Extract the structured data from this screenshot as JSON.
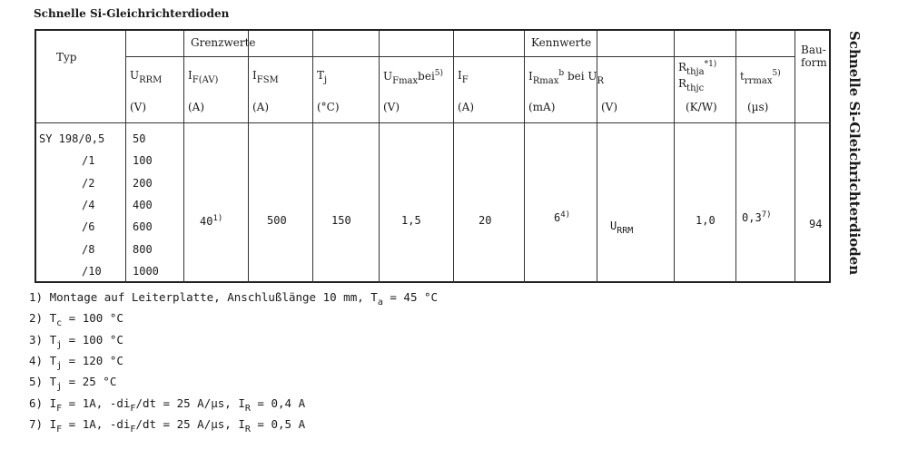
{
  "title": "Schnelle Si-Gleichrichterdioden",
  "side_title": "Schnelle Si-Gleichrichterdioden",
  "table": {
    "typ": "Typ",
    "grenzwerte": "Grenzwerte",
    "kennwerte": "Kennwerte",
    "bauform": [
      "Bau-",
      "form"
    ],
    "cols": [
      {
        "sym": "U",
        "sub": "RRM",
        "unit": "(V)"
      },
      {
        "sym": "I",
        "sub": "F(AV)",
        "unit": "(A)"
      },
      {
        "sym": "I",
        "sub": "FSM",
        "unit": "(A)"
      },
      {
        "sym": "T",
        "sub": "j",
        "unit": "(°C)"
      },
      {
        "sym": "U",
        "sub": "Fmax",
        "extra": "bei",
        "sup": "5)",
        "unit": "(V)"
      },
      {
        "sym": "I",
        "sub": "F",
        "unit": "(A)"
      },
      {
        "sym": "I",
        "sub": "Rmax",
        "sup2": "b",
        "extra": " bei U",
        "sub2": "R",
        "unit": "(mA)"
      },
      {
        "unit": "(V)"
      },
      {
        "sym": "R",
        "sub": "thja",
        "sup": "*1)",
        "line2sym": "R",
        "line2sub": "thjc",
        "unit": "(K/W)"
      },
      {
        "sym": "t",
        "sub": "rrmax",
        "sup": "5)",
        "unit": "(µs)"
      }
    ],
    "types": [
      "SY 198/0,5",
      "/1",
      "/2",
      "/4",
      "/6",
      "/8",
      "/10"
    ],
    "urrm": [
      "50",
      "100",
      "200",
      "400",
      "600",
      "800",
      "1000"
    ],
    "shared": {
      "ifav": "40",
      "ifav_sup": "1)",
      "ifsm": "500",
      "tj": "150",
      "ufmax": "1,5",
      "if": "20",
      "irmax": "6",
      "irmax_sup": "4)",
      "ur_sym": "U",
      "ur_sub": "RRM",
      "rth": "1,0",
      "trr": "0,3",
      "trr_sup": "7)",
      "bauform": "94"
    }
  },
  "footnotes": [
    "1) Montage auf Leiterplatte, Anschlußlänge 10 mm, T|a| = 45 °C",
    "2) T|c| = 100 °C",
    "3) T|j| = 100 °C",
    "4) T|j| = 120 °C",
    "5) T|j| = 25 °C",
    "6) I|F| = 1A, -di|F|/dt = 25 A/µs, I|R| = 0,4 A",
    "7) I|F| = 1A, -di|F|/dt = 25 A/µs, I|R| = 0,5 A"
  ]
}
